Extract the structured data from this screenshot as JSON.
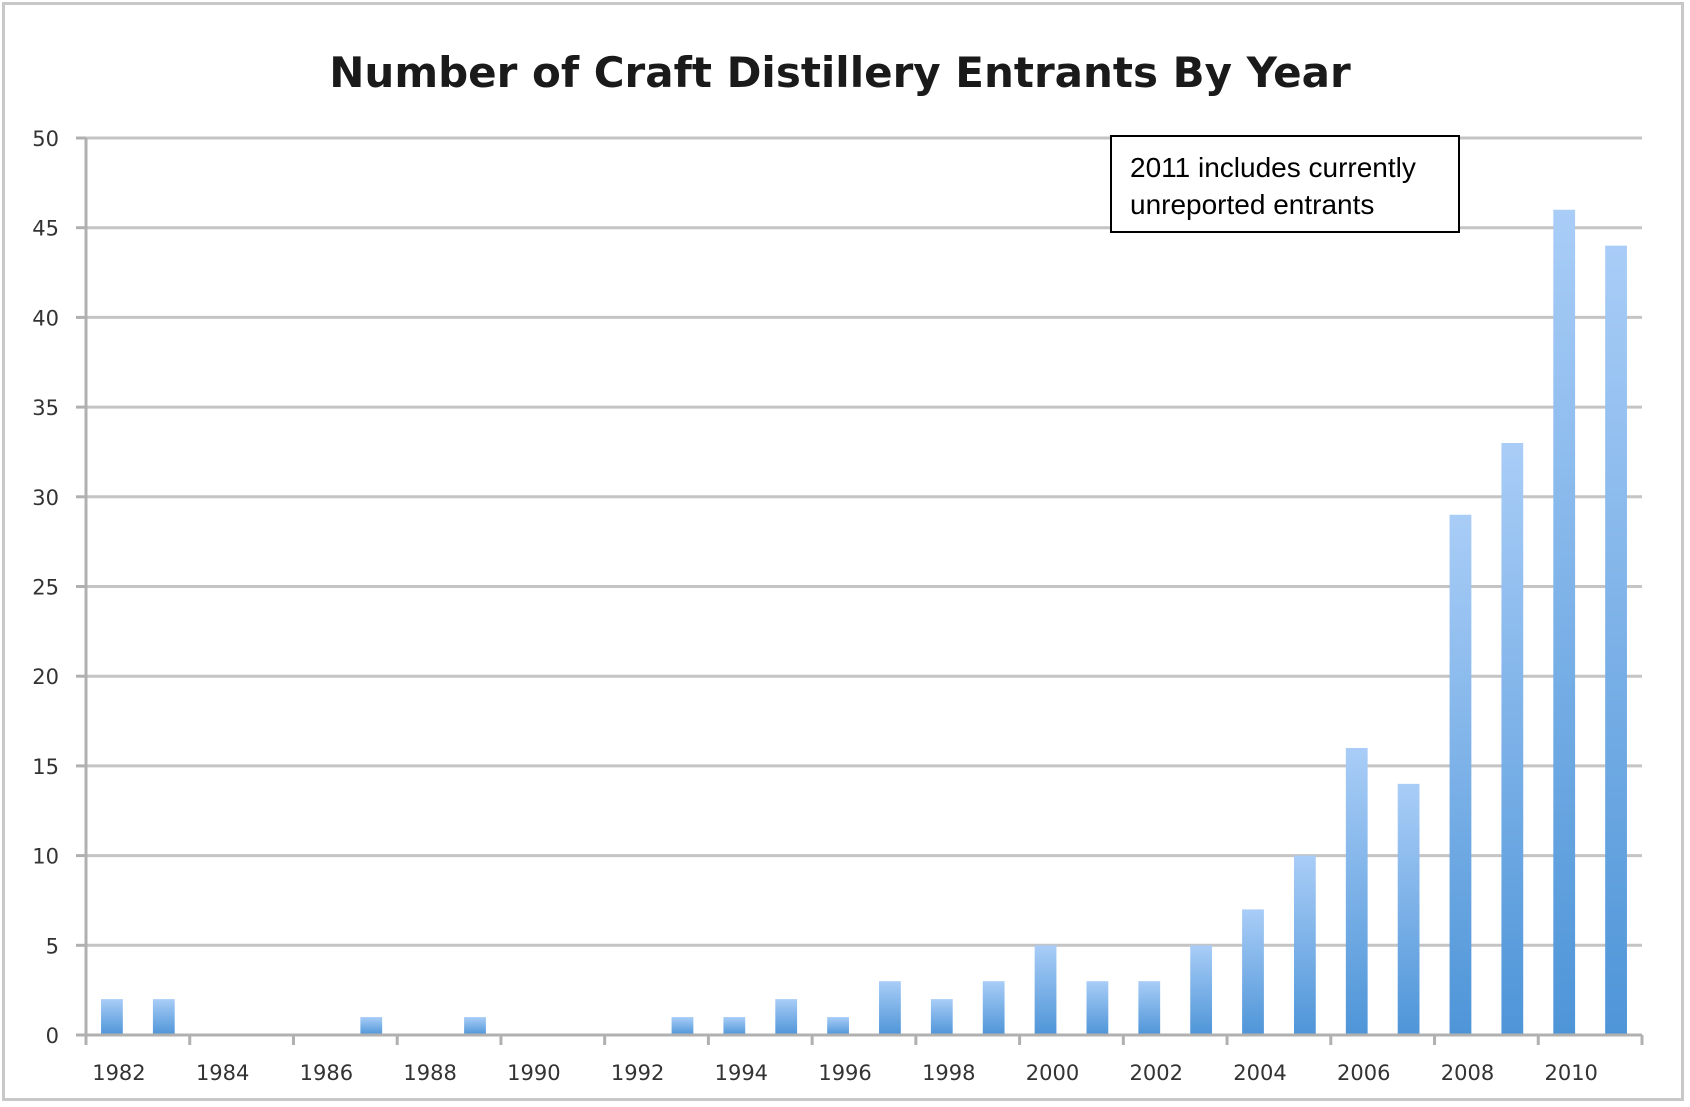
{
  "chart_data": {
    "type": "bar",
    "title": "Number of Craft Distillery Entrants By Year",
    "xlabel": "",
    "ylabel": "",
    "categories": [
      "1982",
      "1983",
      "1984",
      "1985",
      "1986",
      "1987",
      "1988",
      "1989",
      "1990",
      "1991",
      "1992",
      "1993",
      "1994",
      "1995",
      "1996",
      "1997",
      "1998",
      "1999",
      "2000",
      "2001",
      "2002",
      "2003",
      "2004",
      "2005",
      "2006",
      "2007",
      "2008",
      "2009",
      "2010",
      "2011"
    ],
    "x_tick_labels": [
      "1982",
      "1984",
      "1986",
      "1988",
      "1990",
      "1992",
      "1994",
      "1996",
      "1998",
      "2000",
      "2002",
      "2004",
      "2006",
      "2008",
      "2010"
    ],
    "values": [
      2,
      2,
      0,
      0,
      0,
      1,
      0,
      1,
      0,
      0,
      0,
      1,
      1,
      2,
      1,
      3,
      2,
      3,
      5,
      3,
      3,
      5,
      7,
      10,
      16,
      14,
      29,
      33,
      46,
      44
    ],
    "ylim": [
      0,
      50
    ],
    "y_ticks": [
      0,
      5,
      10,
      15,
      20,
      25,
      30,
      35,
      40,
      45,
      50
    ],
    "grid": true,
    "legend": "none",
    "bar_color_top": "#a9cdf7",
    "bar_color_bottom": "#4e95d8",
    "annotation": {
      "line1": "2011 includes currently",
      "line2": "unreported entrants"
    }
  }
}
